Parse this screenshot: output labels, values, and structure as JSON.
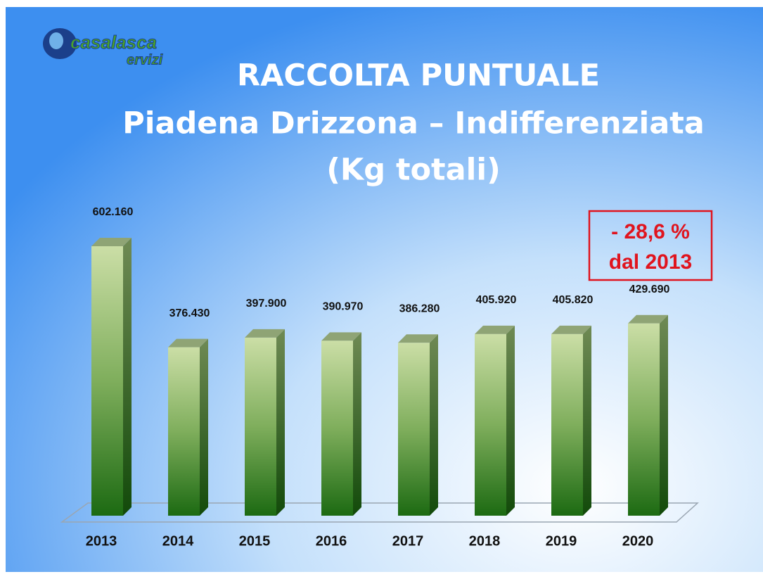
{
  "chart_data": {
    "type": "bar3d",
    "logo": [
      "casalasca",
      "ervizi"
    ],
    "title": "RACCOLTA PUNTUALE",
    "subtitle": [
      "Piadena Drizzona – Indifferenziata",
      "(Kg totali)"
    ],
    "categories": [
      "2013",
      "2014",
      "2015",
      "2016",
      "2017",
      "2018",
      "2019",
      "2020"
    ],
    "values": [
      602160,
      376430,
      397900,
      390970,
      386280,
      405920,
      405820,
      429690
    ],
    "value_labels": [
      "602.160",
      "376.430",
      "397.900",
      "390.970",
      "386.280",
      "405.920",
      "405.820",
      "429.690"
    ],
    "annotation": [
      "- 28,6 %",
      "dal 2013"
    ],
    "color": "#2e7d1e"
  }
}
